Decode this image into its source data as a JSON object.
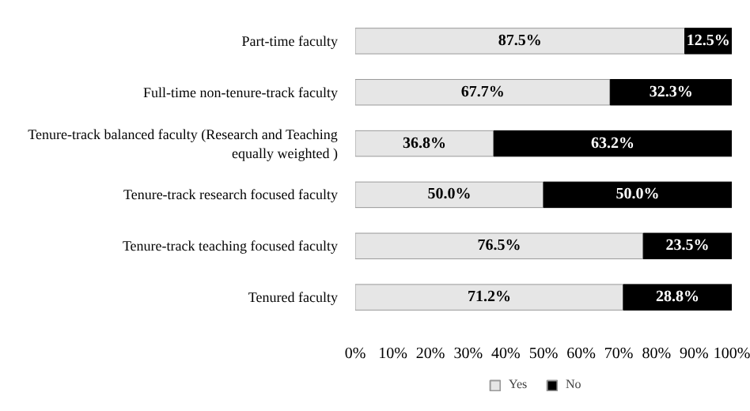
{
  "chart_data": {
    "type": "bar",
    "orientation": "horizontal",
    "stacked": true,
    "categories": [
      "Part-time faculty",
      "Full-time non-tenure-track faculty",
      "Tenure-track balanced faculty (Research and Teaching\nequally weighted )",
      "Tenure-track research focused faculty",
      "Tenure-track teaching focused faculty",
      "Tenured faculty"
    ],
    "series": [
      {
        "name": "Yes",
        "color": "#e6e6e6",
        "values": [
          87.5,
          67.7,
          36.8,
          50.0,
          76.5,
          71.2
        ],
        "value_labels": [
          "87.5%",
          "67.7%",
          "36.8%",
          "50.0%",
          "76.5%",
          "71.2%"
        ]
      },
      {
        "name": "No",
        "color": "#000000",
        "values": [
          12.5,
          32.3,
          63.2,
          50.0,
          23.5,
          28.8
        ],
        "value_labels": [
          "12.5%",
          "32.3%",
          "63.2%",
          "50.0%",
          "23.5%",
          "28.8%"
        ]
      }
    ],
    "xlim": [
      0,
      100
    ],
    "xticks": [
      {
        "value": 0,
        "label": "0%"
      },
      {
        "value": 10,
        "label": "10%"
      },
      {
        "value": 20,
        "label": "20%"
      },
      {
        "value": 30,
        "label": "30%"
      },
      {
        "value": 40,
        "label": "40%"
      },
      {
        "value": 50,
        "label": "50%"
      },
      {
        "value": 60,
        "label": "60%"
      },
      {
        "value": 70,
        "label": "70%"
      },
      {
        "value": 80,
        "label": "80%"
      },
      {
        "value": 90,
        "label": "90%"
      },
      {
        "value": 100,
        "label": "100%"
      }
    ],
    "grid": false,
    "legend": "bottom"
  }
}
